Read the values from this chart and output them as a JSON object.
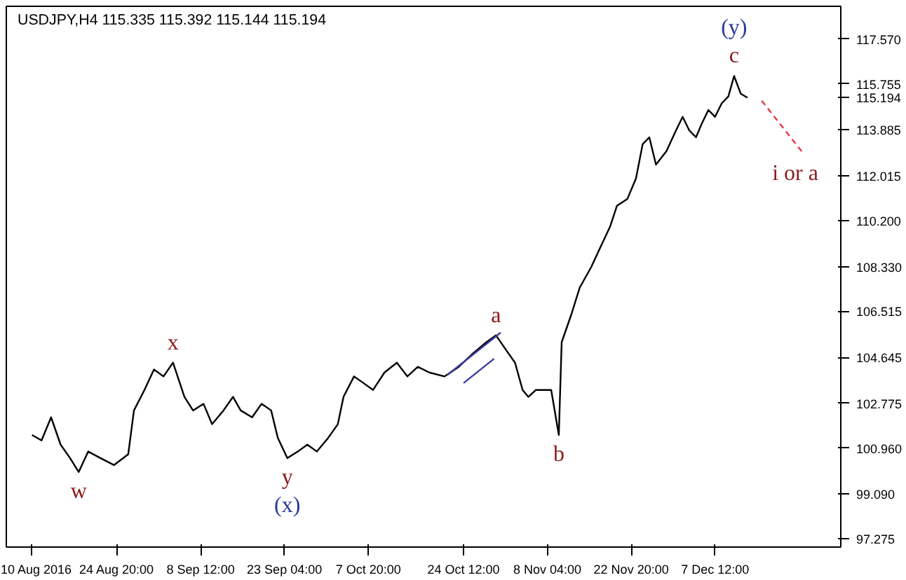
{
  "chart_data": {
    "type": "line",
    "title": "USDJPY,H4  115.335 115.392 115.144 115.194",
    "x": [
      "2016-08-10T00:00",
      "2016-08-11T16:00",
      "2016-08-13T08:00",
      "2016-08-15T00:00",
      "2016-08-16T16:00",
      "2016-08-18T04:00",
      "2016-08-19T20:00",
      "2016-08-22T00:00",
      "2016-08-24T08:00",
      "2016-08-26T20:00",
      "2016-08-27T20:00",
      "2016-08-29T16:00",
      "2016-08-31T08:00",
      "2016-09-02T00:00",
      "2016-09-03T16:00",
      "2016-09-05T16:00",
      "2016-09-07T04:00",
      "2016-09-09T00:00",
      "2016-09-10T12:00",
      "2016-09-12T12:00",
      "2016-09-14T04:00",
      "2016-09-15T12:00",
      "2016-09-17T12:00",
      "2016-09-19T04:00",
      "2016-09-20T20:00",
      "2016-09-22T00:00",
      "2016-09-23T16:00",
      "2016-09-25T12:00",
      "2016-09-27T04:00",
      "2016-09-28T20:00",
      "2016-09-30T20:00",
      "2016-10-02T12:00",
      "2016-10-03T12:00",
      "2016-10-05T08:00",
      "2016-10-07T00:00",
      "2016-10-08T16:00",
      "2016-10-10T16:00",
      "2016-10-12T20:00",
      "2016-10-14T16:00",
      "2016-10-16T12:00",
      "2016-10-18T12:00",
      "2016-10-21T04:00",
      "2016-10-23T16:00",
      "2016-10-26T04:00",
      "2016-10-28T12:00",
      "2016-10-30T04:00",
      "2016-10-31T20:00",
      "2016-11-02T12:00",
      "2016-11-03T20:00",
      "2016-11-04T20:00",
      "2016-11-06T04:00",
      "2016-11-08T20:00",
      "2016-11-10T04:00",
      "2016-11-10T16:00",
      "2016-11-12T08:00",
      "2016-11-13T20:00",
      "2016-11-15T20:00",
      "2016-11-17T12:00",
      "2016-11-19T04:00",
      "2016-11-20T08:00",
      "2016-11-22T04:00",
      "2016-11-23T16:00",
      "2016-11-24T20:00",
      "2016-11-26T00:00",
      "2016-11-27T04:00",
      "2016-11-29T00:00",
      "2016-11-30T16:00",
      "2016-12-01T20:00",
      "2016-12-03T00:00",
      "2016-12-04T04:00",
      "2016-12-05T04:00",
      "2016-12-06T08:00",
      "2016-12-07T12:00",
      "2016-12-08T16:00",
      "2016-12-09T20:00",
      "2016-12-10T20:00",
      "2016-12-12T00:00",
      "2016-12-13T04:00"
    ],
    "series": [
      {
        "color": "#000000",
        "values": [
          101.49,
          101.27,
          102.21,
          101.1,
          100.55,
          99.99,
          100.82,
          100.55,
          100.27,
          100.71,
          102.49,
          103.32,
          104.15,
          103.87,
          104.43,
          103.04,
          102.49,
          102.76,
          101.93,
          102.49,
          103.04,
          102.49,
          102.21,
          102.76,
          102.49,
          101.38,
          100.55,
          100.82,
          101.1,
          100.82,
          101.38,
          101.93,
          103.04,
          103.87,
          103.6,
          103.32,
          104.03,
          104.43,
          103.87,
          104.26,
          104.03,
          103.87,
          104.26,
          104.81,
          105.26,
          105.54,
          104.98,
          104.43,
          103.32,
          103.04,
          103.32,
          103.32,
          101.49,
          105.26,
          106.37,
          107.48,
          108.31,
          109.14,
          109.97,
          110.8,
          111.08,
          111.91,
          113.3,
          113.58,
          112.47,
          113.02,
          113.86,
          114.41,
          113.86,
          113.58,
          114.13,
          114.69,
          114.41,
          114.96,
          115.24,
          116.07,
          115.35,
          115.19
        ]
      },
      {
        "color": "#e8364a",
        "line_style": "dashed",
        "x": [
          "2016-12-15T16:00",
          "2016-12-23T00:00"
        ],
        "values": [
          115.07,
          112.91
        ]
      },
      {
        "color": "#3a3aa0",
        "x": [
          "2016-10-21T16:00",
          "2016-10-31T00:00"
        ],
        "values": [
          103.93,
          105.65
        ]
      },
      {
        "color": "#3a3aa0",
        "x": [
          "2016-10-24T12:00",
          "2016-10-29T20:00"
        ],
        "values": [
          103.6,
          104.59
        ]
      }
    ],
    "xlim": [
      "2016-08-05T12:00",
      "2016-12-29T12:00"
    ],
    "xticks": [
      {
        "value": "2016-08-10T00:00",
        "label": "10 Aug 2016"
      },
      {
        "value": "2016-08-24T20:00",
        "label": "24 Aug 20:00"
      },
      {
        "value": "2016-09-08T12:00",
        "label": "8 Sep 12:00"
      },
      {
        "value": "2016-09-23T04:00",
        "label": "23 Sep 04:00"
      },
      {
        "value": "2016-10-07T20:00",
        "label": "7 Oct 20:00"
      },
      {
        "value": "2016-10-24T12:00",
        "label": "24 Oct 12:00"
      },
      {
        "value": "2016-11-08T04:00",
        "label": "8 Nov 04:00"
      },
      {
        "value": "2016-11-22T20:00",
        "label": "22 Nov 20:00"
      },
      {
        "value": "2016-12-07T12:00",
        "label": "7 Dec 12:00"
      }
    ],
    "ylim": [
      96.94,
      118.9
    ],
    "yticks": [
      {
        "value": 117.57,
        "label": "117.570"
      },
      {
        "value": 115.755,
        "label": "115.755"
      },
      {
        "value": 115.194,
        "label": "115.194"
      },
      {
        "value": 113.885,
        "label": "113.885"
      },
      {
        "value": 112.015,
        "label": "112.015"
      },
      {
        "value": 110.2,
        "label": "110.200"
      },
      {
        "value": 108.33,
        "label": "108.330"
      },
      {
        "value": 106.515,
        "label": "106.515"
      },
      {
        "value": 104.645,
        "label": "104.645"
      },
      {
        "value": 102.775,
        "label": "102.775"
      },
      {
        "value": 100.96,
        "label": "100.960"
      },
      {
        "value": 99.09,
        "label": "99.090"
      },
      {
        "value": 97.275,
        "label": "97.275"
      }
    ],
    "annotations": [
      {
        "text": "w",
        "x": "2016-08-18T04:00",
        "y": 99.99
      },
      {
        "text": "x",
        "x": "2016-09-03T16:00",
        "y": 104.43
      },
      {
        "text": "y",
        "x": "2016-09-23T16:00",
        "y": 100.55
      },
      {
        "text": "(x)",
        "x": "2016-09-23T16:00",
        "y": 100.55
      },
      {
        "text": "a",
        "x": "2016-10-30T04:00",
        "y": 105.54
      },
      {
        "text": "b",
        "x": "2016-11-10T04:00",
        "y": 101.49
      },
      {
        "text": "c",
        "x": "2016-12-10T20:00",
        "y": 116.07
      },
      {
        "text": "(y)",
        "x": "2016-12-10T20:00",
        "y": 116.07
      },
      {
        "text": "i or a",
        "x": "2016-12-23T00:00",
        "y": 112.91
      }
    ],
    "grid": false
  }
}
